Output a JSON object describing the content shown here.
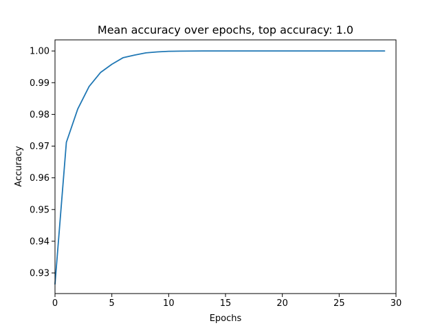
{
  "chart_data": {
    "type": "line",
    "title": "Mean accuracy over epochs, top accuracy: 1.0",
    "xlabel": "Epochs",
    "ylabel": "Accuracy",
    "xlim": [
      0,
      30
    ],
    "ylim": [
      0.9235,
      1.0035
    ],
    "x_ticks": [
      0,
      5,
      10,
      15,
      20,
      25,
      30
    ],
    "y_ticks": [
      0.93,
      0.94,
      0.95,
      0.96,
      0.97,
      0.98,
      0.99,
      1.0
    ],
    "x_tick_labels": [
      "0",
      "5",
      "10",
      "15",
      "20",
      "25",
      "30"
    ],
    "y_tick_labels": [
      "0.93",
      "0.94",
      "0.95",
      "0.96",
      "0.97",
      "0.98",
      "0.99",
      "1.00"
    ],
    "grid": false,
    "legend": "none",
    "series": [
      {
        "color": "#1f77b4",
        "x": [
          0,
          1,
          2,
          3,
          4,
          5,
          6,
          7,
          8,
          9,
          10,
          11,
          12,
          13,
          14,
          15,
          16,
          17,
          18,
          19,
          20,
          21,
          22,
          23,
          24,
          25,
          26,
          27,
          28,
          29
        ],
        "values": [
          0.9265,
          0.9712,
          0.9817,
          0.9888,
          0.9932,
          0.9958,
          0.9979,
          0.9987,
          0.9994,
          0.9997,
          0.9999,
          0.99995,
          0.99998,
          1.0,
          1.0,
          1.0,
          1.0,
          1.0,
          1.0,
          1.0,
          1.0,
          1.0,
          1.0,
          1.0,
          1.0,
          1.0,
          1.0,
          1.0,
          1.0,
          1.0
        ]
      }
    ]
  }
}
